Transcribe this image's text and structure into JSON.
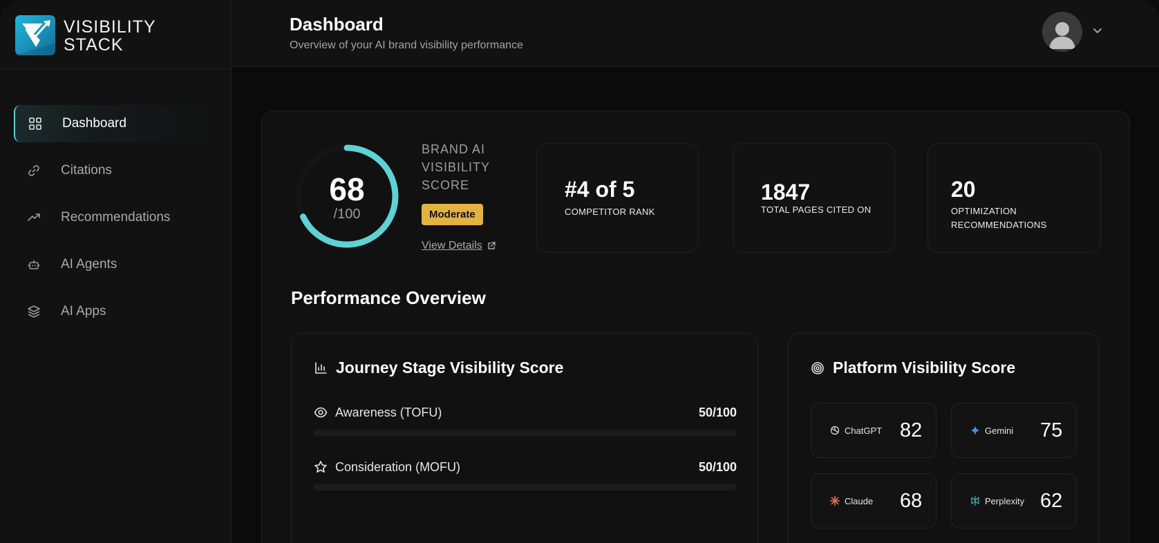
{
  "brand": {
    "line1": "VISIBILITY",
    "line2": "STACK"
  },
  "nav": [
    {
      "label": "Dashboard",
      "icon": "grid-icon",
      "active": true
    },
    {
      "label": "Citations",
      "icon": "link-icon",
      "active": false
    },
    {
      "label": "Recommendations",
      "icon": "trending-up-icon",
      "active": false
    },
    {
      "label": "AI Agents",
      "icon": "bot-icon",
      "active": false
    },
    {
      "label": "AI Apps",
      "icon": "layers-icon",
      "active": false
    }
  ],
  "header": {
    "title": "Dashboard",
    "subtitle": "Overview of your AI brand visibility performance"
  },
  "score": {
    "value": "68",
    "denominator": "/100",
    "fraction": 0.68,
    "label": "BRAND AI VISIBILITY SCORE",
    "badge": "Moderate",
    "view_details": "View Details"
  },
  "stats": [
    {
      "value": "#4 of 5",
      "label": "COMPETITOR RANK"
    },
    {
      "value": "1847",
      "label": "TOTAL PAGES CITED ON"
    },
    {
      "value": "20",
      "label": "OPTIMIZATION RECOMMENDATIONS"
    }
  ],
  "performance": {
    "title": "Performance Overview",
    "journey": {
      "title": "Journey Stage Visibility Score",
      "stages": [
        {
          "name": "Awareness (TOFU)",
          "score": "50/100",
          "icon": "eye-icon"
        },
        {
          "name": "Consideration (MOFU)",
          "score": "50/100",
          "icon": "star-icon"
        }
      ]
    },
    "platform": {
      "title": "Platform Visibility Score",
      "platforms": [
        {
          "name": "ChatGPT",
          "score": "82",
          "icon": "chatgpt-icon"
        },
        {
          "name": "Gemini",
          "score": "75",
          "icon": "gemini-icon"
        },
        {
          "name": "Claude",
          "score": "68",
          "icon": "claude-icon"
        },
        {
          "name": "Perplexity",
          "score": "62",
          "icon": "perplexity-icon"
        }
      ]
    }
  },
  "colors": {
    "accent": "#5ed3d6",
    "badge": "#e3b341",
    "background": "#0b0b0b",
    "surface": "#121212"
  }
}
